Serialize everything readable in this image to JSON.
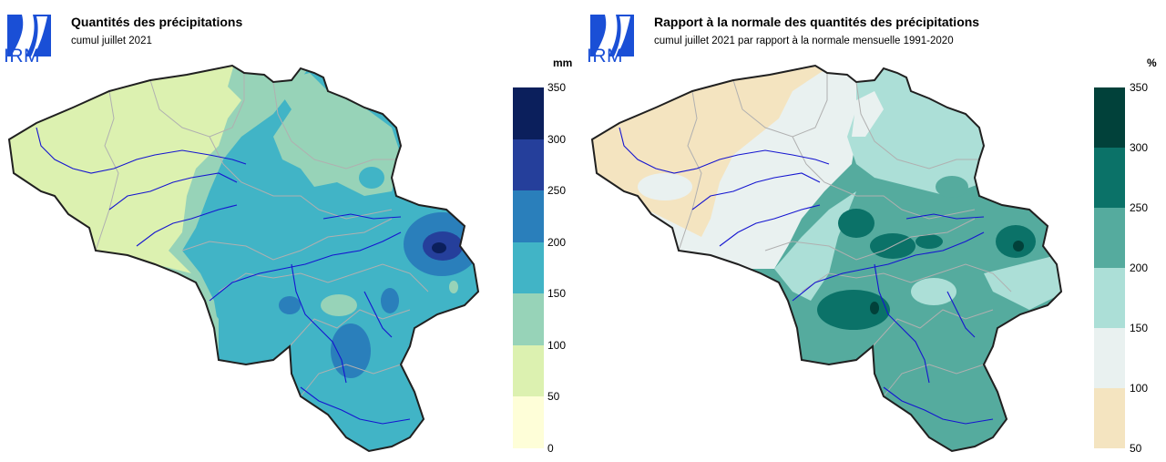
{
  "left": {
    "logo_text": "IRM",
    "title": "Quantités des précipitations",
    "subtitle": "cumul juillet 2021",
    "unit": "mm",
    "legend": {
      "labels": [
        "350",
        "300",
        "250",
        "200",
        "150",
        "100",
        "50",
        "0"
      ],
      "colors": [
        "#0b1f5c",
        "#253f9b",
        "#2a7fbb",
        "#41b4c6",
        "#97d3b8",
        "#dcf1b0",
        "#fefed8"
      ]
    }
  },
  "right": {
    "logo_text": "IRM",
    "title": "Rapport à la normale des quantités des précipitations",
    "subtitle": "cumul juillet 2021 par rapport à la normale mensuelle 1991-2020",
    "unit": "%",
    "legend": {
      "labels": [
        "350",
        "300",
        "250",
        "200",
        "150",
        "100",
        "50"
      ],
      "colors": [
        "#01413a",
        "#0b7268",
        "#55ab9e",
        "#acdfd7",
        "#e9f1f0",
        "#f4e4c0"
      ]
    }
  }
}
